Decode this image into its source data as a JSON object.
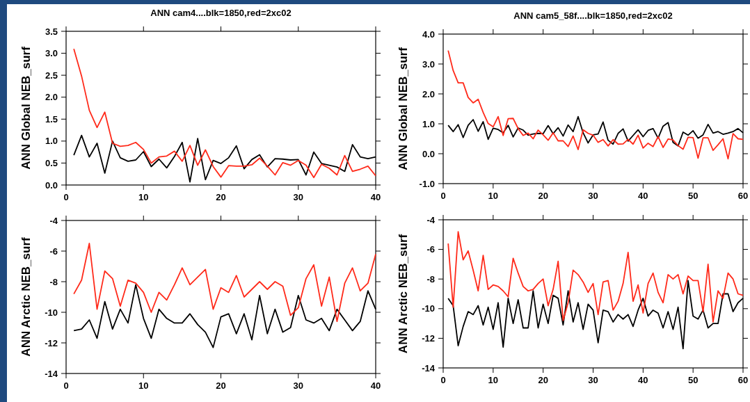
{
  "chart_data": [
    {
      "type": "line",
      "title": "ANN cam4....blk=1850,red=2xc02",
      "ylabel": "ANN  Global  NEB_surf",
      "x": [
        1,
        2,
        3,
        4,
        5,
        6,
        7,
        8,
        9,
        10,
        11,
        12,
        13,
        14,
        15,
        16,
        17,
        18,
        19,
        20,
        21,
        22,
        23,
        24,
        25,
        26,
        27,
        28,
        29,
        30,
        31,
        32,
        33,
        34,
        35,
        36,
        37,
        38,
        39,
        40
      ],
      "xlim": [
        0,
        40
      ],
      "xticks": [
        0,
        10,
        20,
        30,
        40
      ],
      "ylim": [
        0,
        3.5
      ],
      "yticks": [
        {
          "value": 0,
          "label": "0.0"
        },
        {
          "value": 0.5,
          "label": "0.5"
        },
        {
          "value": 1,
          "label": "1.0"
        },
        {
          "value": 1.5,
          "label": "1.5"
        },
        {
          "value": 2,
          "label": "2.0"
        },
        {
          "value": 2.5,
          "label": "2.5"
        },
        {
          "value": 3,
          "label": "3.0"
        },
        {
          "value": 3.5,
          "label": "3.5"
        }
      ],
      "series": [
        {
          "color": "#000000",
          "values": [
            0.68,
            1.13,
            0.64,
            0.95,
            0.27,
            1.0,
            0.62,
            0.54,
            0.57,
            0.76,
            0.42,
            0.59,
            0.39,
            0.65,
            0.97,
            0.07,
            1.06,
            0.12,
            0.56,
            0.49,
            0.62,
            0.89,
            0.37,
            0.58,
            0.69,
            0.41,
            0.6,
            0.59,
            0.57,
            0.58,
            0.23,
            0.75,
            0.49,
            0.45,
            0.41,
            0.31,
            0.92,
            0.64,
            0.6,
            0.64
          ]
        },
        {
          "color": "#ff2a1a",
          "values": [
            3.1,
            2.48,
            1.7,
            1.31,
            1.66,
            0.95,
            0.88,
            0.9,
            0.97,
            0.81,
            0.5,
            0.64,
            0.66,
            0.77,
            0.54,
            0.9,
            0.45,
            0.8,
            0.42,
            0.18,
            0.44,
            0.43,
            0.43,
            0.46,
            0.61,
            0.43,
            0.23,
            0.51,
            0.45,
            0.56,
            0.45,
            0.17,
            0.47,
            0.38,
            0.23,
            0.67,
            0.31,
            0.36,
            0.43,
            0.21
          ]
        }
      ]
    },
    {
      "type": "line",
      "title": "ANN cam5_58f....blk=1850,red=2xc02",
      "ylabel": "ANN  Global  NEB_surf",
      "x": [
        1,
        2,
        3,
        4,
        5,
        6,
        7,
        8,
        9,
        10,
        11,
        12,
        13,
        14,
        15,
        16,
        17,
        18,
        19,
        20,
        21,
        22,
        23,
        24,
        25,
        26,
        27,
        28,
        29,
        30,
        31,
        32,
        33,
        34,
        35,
        36,
        37,
        38,
        39,
        40,
        41,
        42,
        43,
        44,
        45,
        46,
        47,
        48,
        49,
        50,
        51,
        52,
        53,
        54,
        55,
        56,
        57,
        58,
        59,
        60
      ],
      "xlim": [
        0,
        60
      ],
      "xticks": [
        0,
        10,
        20,
        30,
        40,
        50,
        60
      ],
      "ylim": [
        -1,
        4
      ],
      "yticks": [
        {
          "value": -1,
          "label": "-1.0"
        },
        {
          "value": 0,
          "label": "0.0"
        },
        {
          "value": 1,
          "label": "1.0"
        },
        {
          "value": 2,
          "label": "2.0"
        },
        {
          "value": 3,
          "label": "3.0"
        },
        {
          "value": 4,
          "label": "4.0"
        }
      ],
      "series": [
        {
          "color": "#000000",
          "values": [
            0.95,
            0.74,
            0.97,
            0.54,
            0.95,
            1.14,
            0.75,
            1.07,
            0.48,
            0.85,
            0.81,
            0.7,
            0.95,
            0.56,
            0.86,
            0.79,
            0.62,
            0.66,
            0.68,
            0.67,
            0.94,
            0.67,
            0.87,
            0.59,
            0.96,
            0.74,
            1.24,
            0.7,
            0.36,
            0.63,
            0.66,
            1.06,
            0.45,
            0.32,
            0.68,
            0.83,
            0.42,
            0.61,
            0.8,
            0.57,
            0.78,
            0.84,
            0.52,
            0.92,
            1.04,
            0.38,
            0.26,
            0.72,
            0.62,
            0.77,
            0.52,
            0.63,
            0.98,
            0.69,
            0.74,
            0.65,
            0.69,
            0.74,
            0.84,
            0.7
          ]
        },
        {
          "color": "#ff2a1a",
          "values": [
            3.45,
            2.78,
            2.37,
            2.37,
            1.88,
            1.7,
            1.82,
            1.38,
            1.01,
            0.9,
            1.24,
            0.61,
            1.17,
            1.18,
            0.84,
            0.61,
            0.69,
            0.5,
            0.79,
            0.63,
            0.45,
            0.7,
            0.43,
            0.43,
            0.24,
            0.59,
            0.14,
            0.8,
            0.68,
            0.62,
            0.38,
            0.47,
            0.26,
            0.47,
            0.32,
            0.33,
            0.48,
            0.32,
            0.62,
            0.19,
            0.35,
            0.24,
            0.57,
            0.21,
            0.49,
            0.46,
            0.27,
            0.15,
            0.55,
            0.54,
            -0.15,
            0.53,
            0.53,
            0.11,
            0.3,
            0.5,
            -0.17,
            0.67,
            0.5,
            0.48
          ]
        }
      ]
    },
    {
      "type": "line",
      "ylabel": "ANN  Arctic  NEB_surf",
      "x": [
        1,
        2,
        3,
        4,
        5,
        6,
        7,
        8,
        9,
        10,
        11,
        12,
        13,
        14,
        15,
        16,
        17,
        18,
        19,
        20,
        21,
        22,
        23,
        24,
        25,
        26,
        27,
        28,
        29,
        30,
        31,
        32,
        33,
        34,
        35,
        36,
        37,
        38,
        39,
        40
      ],
      "xlim": [
        0,
        40
      ],
      "xticks": [
        0,
        10,
        20,
        30,
        40
      ],
      "ylim": [
        -14,
        -4
      ],
      "yticks": [
        -14,
        -12,
        -10,
        -8,
        -6,
        -4
      ],
      "series": [
        {
          "color": "#000000",
          "values": [
            -11.2,
            -11.1,
            -10.5,
            -11.7,
            -9.3,
            -11.1,
            -9.8,
            -10.7,
            -8.2,
            -10.4,
            -11.7,
            -9.8,
            -10.4,
            -10.7,
            -10.7,
            -10.1,
            -10.8,
            -11.3,
            -12.3,
            -10.3,
            -10.1,
            -11.4,
            -10.1,
            -11.8,
            -8.9,
            -11.4,
            -9.8,
            -11.3,
            -11.0,
            -8.9,
            -10.5,
            -10.7,
            -10.4,
            -11.2,
            -9.8,
            -10.5,
            -11.2,
            -10.6,
            -8.6,
            -9.8
          ]
        },
        {
          "color": "#ff2a1a",
          "values": [
            -8.8,
            -7.9,
            -5.5,
            -9.8,
            -7.3,
            -7.8,
            -9.6,
            -7.9,
            -8.1,
            -8.7,
            -10.0,
            -8.7,
            -9.2,
            -8.2,
            -7.1,
            -8.2,
            -7.7,
            -7.2,
            -9.8,
            -8.4,
            -8.7,
            -7.6,
            -9.0,
            -8.5,
            -8.0,
            -8.5,
            -8.0,
            -8.3,
            -10.2,
            -9.7,
            -7.8,
            -6.9,
            -9.6,
            -7.7,
            -10.6,
            -8.1,
            -7.1,
            -8.6,
            -8.1,
            -6.2
          ]
        }
      ]
    },
    {
      "type": "line",
      "ylabel": "ANN  Arctic  NEB_surf",
      "x": [
        1,
        2,
        3,
        4,
        5,
        6,
        7,
        8,
        9,
        10,
        11,
        12,
        13,
        14,
        15,
        16,
        17,
        18,
        19,
        20,
        21,
        22,
        23,
        24,
        25,
        26,
        27,
        28,
        29,
        30,
        31,
        32,
        33,
        34,
        35,
        36,
        37,
        38,
        39,
        40,
        41,
        42,
        43,
        44,
        45,
        46,
        47,
        48,
        49,
        50,
        51,
        52,
        53,
        54,
        55,
        56,
        57,
        58,
        59,
        60
      ],
      "xlim": [
        0,
        60
      ],
      "xticks": [
        0,
        10,
        20,
        30,
        40,
        50,
        60
      ],
      "ylim": [
        -14,
        -4
      ],
      "yticks": [
        -14,
        -12,
        -10,
        -8,
        -6,
        -4
      ],
      "series": [
        {
          "color": "#000000",
          "values": [
            -9.3,
            -9.8,
            -12.5,
            -11.2,
            -10.2,
            -10.4,
            -9.8,
            -11.1,
            -9.9,
            -11.4,
            -9.6,
            -12.6,
            -9.3,
            -11.0,
            -9.4,
            -11.3,
            -11.3,
            -8.8,
            -11.3,
            -9.7,
            -11.0,
            -9.1,
            -9.3,
            -11.1,
            -8.8,
            -10.9,
            -9.6,
            -11.4,
            -9.7,
            -10.1,
            -12.3,
            -10.1,
            -10.2,
            -10.9,
            -10.4,
            -10.7,
            -10.4,
            -11.2,
            -10.1,
            -9.3,
            -10.5,
            -10.1,
            -10.3,
            -11.3,
            -10.2,
            -11.4,
            -9.9,
            -12.7,
            -8.1,
            -10.5,
            -10.7,
            -10.1,
            -11.3,
            -11.0,
            -11.0,
            -9.0,
            -9.0,
            -10.2,
            -9.6,
            -9.3
          ]
        },
        {
          "color": "#ff2a1a",
          "values": [
            -5.6,
            -9.9,
            -4.8,
            -6.7,
            -6.1,
            -7.4,
            -8.8,
            -6.4,
            -8.7,
            -8.4,
            -8.5,
            -8.8,
            -9.2,
            -6.6,
            -7.6,
            -8.5,
            -8.8,
            -8.7,
            -8.3,
            -8.0,
            -9.8,
            -8.7,
            -6.8,
            -10.8,
            -9.6,
            -7.4,
            -7.7,
            -8.2,
            -8.9,
            -8.3,
            -10.4,
            -8.2,
            -8.1,
            -10.1,
            -9.5,
            -8.3,
            -6.2,
            -9.5,
            -8.4,
            -10.3,
            -8.3,
            -7.6,
            -8.9,
            -9.6,
            -7.7,
            -8.0,
            -7.7,
            -9.0,
            -7.8,
            -8.1,
            -8.1,
            -10.2,
            -7.0,
            -10.9,
            -8.8,
            -9.3,
            -7.6,
            -8.0,
            -9.0,
            -9.1
          ]
        }
      ]
    }
  ]
}
